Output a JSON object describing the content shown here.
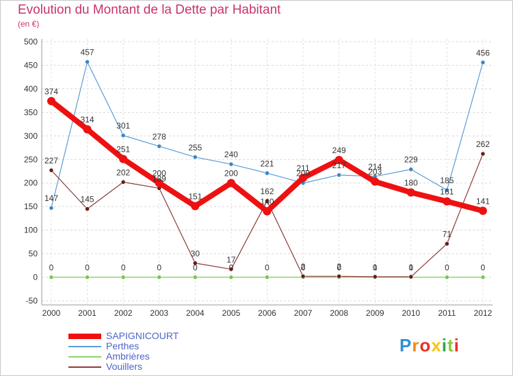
{
  "header": {
    "title": "Evolution du Montant de la Dette par Habitant",
    "subtitle": "(en €)"
  },
  "logo": {
    "letters": [
      "P",
      "r",
      "o",
      "x",
      "i",
      "t",
      "i"
    ],
    "colors": [
      "#2f8fd8",
      "#f08a1c",
      "#e8302a",
      "#f5c518",
      "#2aa84a",
      "#8cc63f",
      "#e8302a"
    ]
  },
  "chart_data": {
    "type": "line",
    "title": "Evolution du Montant de la Dette par Habitant",
    "subtitle": "(en €)",
    "x": [
      "2000",
      "2001",
      "2002",
      "2003",
      "2004",
      "2005",
      "2006",
      "2007",
      "2008",
      "2009",
      "2010",
      "2011",
      "2012"
    ],
    "ylim": [
      -50,
      500
    ],
    "yticks": [
      -50,
      0,
      50,
      100,
      150,
      200,
      250,
      300,
      350,
      400,
      450,
      500
    ],
    "ytick_labels": [
      "-50",
      "0",
      "50",
      "100",
      "150",
      "200",
      "250",
      "300",
      "350",
      "400",
      "450",
      "500"
    ],
    "grid": true,
    "legend_position": "bottom-left",
    "series": [
      {
        "name": "SAPIGNICOURT",
        "color": "#ee1111",
        "values": [
          374,
          314,
          251,
          200,
          151,
          200,
          140,
          211,
          249,
          203,
          180,
          161,
          141
        ],
        "labels": [
          "374",
          "314",
          "251",
          "200",
          "151",
          "200",
          "140",
          "211",
          "249",
          "203",
          "180",
          "161",
          "141"
        ]
      },
      {
        "name": "Perthes",
        "color": "#5b9bd5",
        "values": [
          147,
          457,
          301,
          278,
          255,
          240,
          221,
          200,
          217,
          214,
          229,
          185,
          456
        ],
        "labels": [
          "147",
          "457",
          "301",
          "278",
          "255",
          "240",
          "221",
          "200",
          "217",
          "214",
          "229",
          "185",
          "456"
        ]
      },
      {
        "name": "Ambrières",
        "color": "#8fd16a",
        "values": [
          0,
          0,
          0,
          0,
          0,
          0,
          0,
          0,
          0,
          0,
          0,
          0,
          0
        ],
        "labels": [
          "0",
          "0",
          "0",
          "0",
          "0",
          "0",
          "0",
          "0",
          "0",
          "0",
          "0",
          "0",
          "0"
        ]
      },
      {
        "name": "Vouillers",
        "color": "#8b3a3a",
        "values": [
          227,
          145,
          202,
          189,
          30,
          17,
          162,
          2,
          2,
          1,
          1,
          71,
          262
        ],
        "labels": [
          "227",
          "145",
          "202",
          "189",
          "30",
          "17",
          "162",
          "2",
          "2",
          "1",
          "1",
          "71",
          "262"
        ]
      }
    ]
  }
}
